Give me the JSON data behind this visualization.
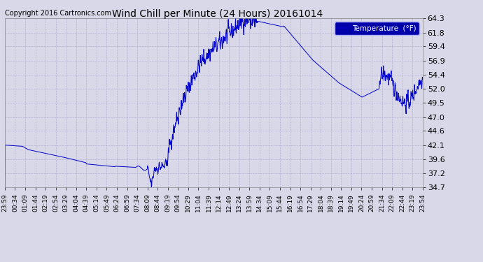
{
  "title": "Wind Chill per Minute (24 Hours) 20161014",
  "copyright_text": "Copyright 2016 Cartronics.com",
  "legend_label": "Temperature  (°F)",
  "line_color": "#0000CC",
  "background_color": "#d8d8e8",
  "plot_bg_color": "#d8d8e8",
  "grid_color": "#aaaacc",
  "ylim": [
    34.7,
    64.3
  ],
  "yticks": [
    34.7,
    37.2,
    39.6,
    42.1,
    44.6,
    47.0,
    49.5,
    52.0,
    54.4,
    56.9,
    59.4,
    61.8,
    64.3
  ],
  "xtick_labels": [
    "23:59",
    "00:34",
    "01:09",
    "01:44",
    "02:19",
    "02:54",
    "03:29",
    "04:04",
    "04:39",
    "05:14",
    "05:49",
    "06:24",
    "06:59",
    "07:34",
    "08:09",
    "08:44",
    "09:19",
    "09:54",
    "10:29",
    "11:04",
    "11:39",
    "12:14",
    "12:49",
    "13:24",
    "13:59",
    "14:34",
    "15:09",
    "15:44",
    "16:19",
    "16:54",
    "17:29",
    "18:04",
    "18:39",
    "19:14",
    "19:49",
    "20:24",
    "20:59",
    "21:34",
    "22:09",
    "22:44",
    "23:19",
    "23:54"
  ],
  "legend_bg": "#0000AA",
  "legend_text_color": "#ffffff"
}
